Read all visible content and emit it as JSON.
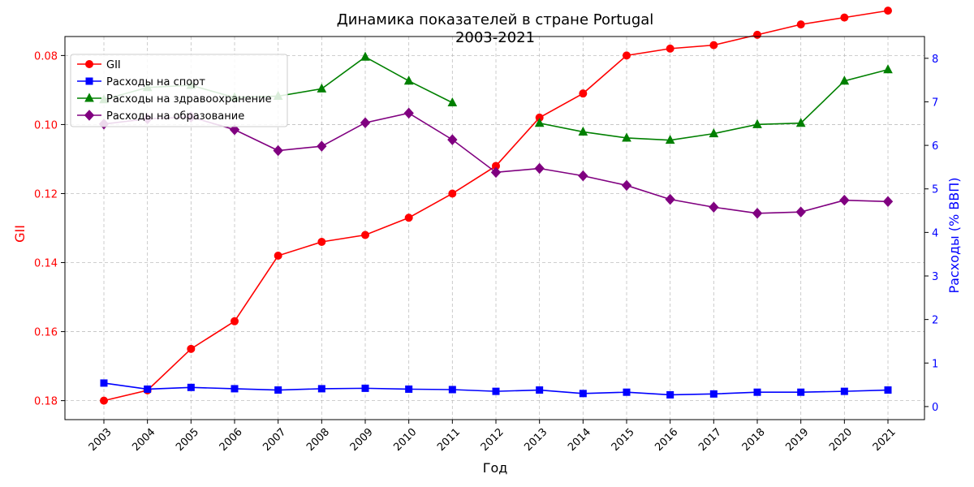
{
  "chart_data": {
    "type": "line",
    "title": "Динамика показателей в стране Portugal",
    "subtitle": "2003-2021",
    "xlabel": "Год",
    "ylabel_left": "GII",
    "ylabel_right": "Расходы (% ВВП)",
    "left_axis_inverted": true,
    "left_ylim": [
      0.0745,
      0.1855
    ],
    "right_ylim": [
      -0.3,
      8.5
    ],
    "left_ticks": [
      0.08,
      0.1,
      0.12,
      0.14,
      0.16,
      0.18
    ],
    "left_tick_labels": [
      "0.08",
      "0.10",
      "0.12",
      "0.14",
      "0.16",
      "0.18"
    ],
    "right_ticks": [
      0,
      1,
      2,
      3,
      4,
      5,
      6,
      7,
      8
    ],
    "right_tick_labels": [
      "0",
      "1",
      "2",
      "3",
      "4",
      "5",
      "6",
      "7",
      "8"
    ],
    "grid": true,
    "legend_position": "top-left",
    "categories": [
      "2003",
      "2004",
      "2005",
      "2006",
      "2007",
      "2008",
      "2009",
      "2010",
      "2011",
      "2012",
      "2013",
      "2014",
      "2015",
      "2016",
      "2017",
      "2018",
      "2019",
      "2020",
      "2021"
    ],
    "series": [
      {
        "name": "GII",
        "axis": "left",
        "color": "#ff0000",
        "marker": "circle",
        "values": [
          0.18,
          0.177,
          0.165,
          0.157,
          0.138,
          0.134,
          0.132,
          0.127,
          0.12,
          0.112,
          0.098,
          0.091,
          0.08,
          0.078,
          0.077,
          0.074,
          0.071,
          0.069,
          0.067
        ]
      },
      {
        "name": "Расходы на спорт",
        "axis": "right",
        "color": "#0000ff",
        "marker": "square",
        "values": [
          0.54,
          0.4,
          0.44,
          0.41,
          0.38,
          0.41,
          0.42,
          0.4,
          0.39,
          0.35,
          0.38,
          0.3,
          0.33,
          0.27,
          0.29,
          0.33,
          0.33,
          0.35,
          0.38
        ]
      },
      {
        "name": "Расходы на здравоохранение",
        "axis": "right",
        "color": "#008000",
        "marker": "triangle",
        "values": [
          7.05,
          7.33,
          7.38,
          7.1,
          7.13,
          7.3,
          8.03,
          7.48,
          6.98,
          null,
          6.51,
          6.31,
          6.17,
          6.12,
          6.27,
          6.48,
          6.51,
          7.48,
          7.74
        ]
      },
      {
        "name": "Расходы на образование",
        "axis": "right",
        "color": "#800080",
        "marker": "diamond",
        "values": [
          6.49,
          6.61,
          6.65,
          6.36,
          5.88,
          5.98,
          6.52,
          6.74,
          6.13,
          5.38,
          5.47,
          5.3,
          5.08,
          4.76,
          4.58,
          4.44,
          4.47,
          4.74,
          4.71
        ]
      }
    ]
  }
}
